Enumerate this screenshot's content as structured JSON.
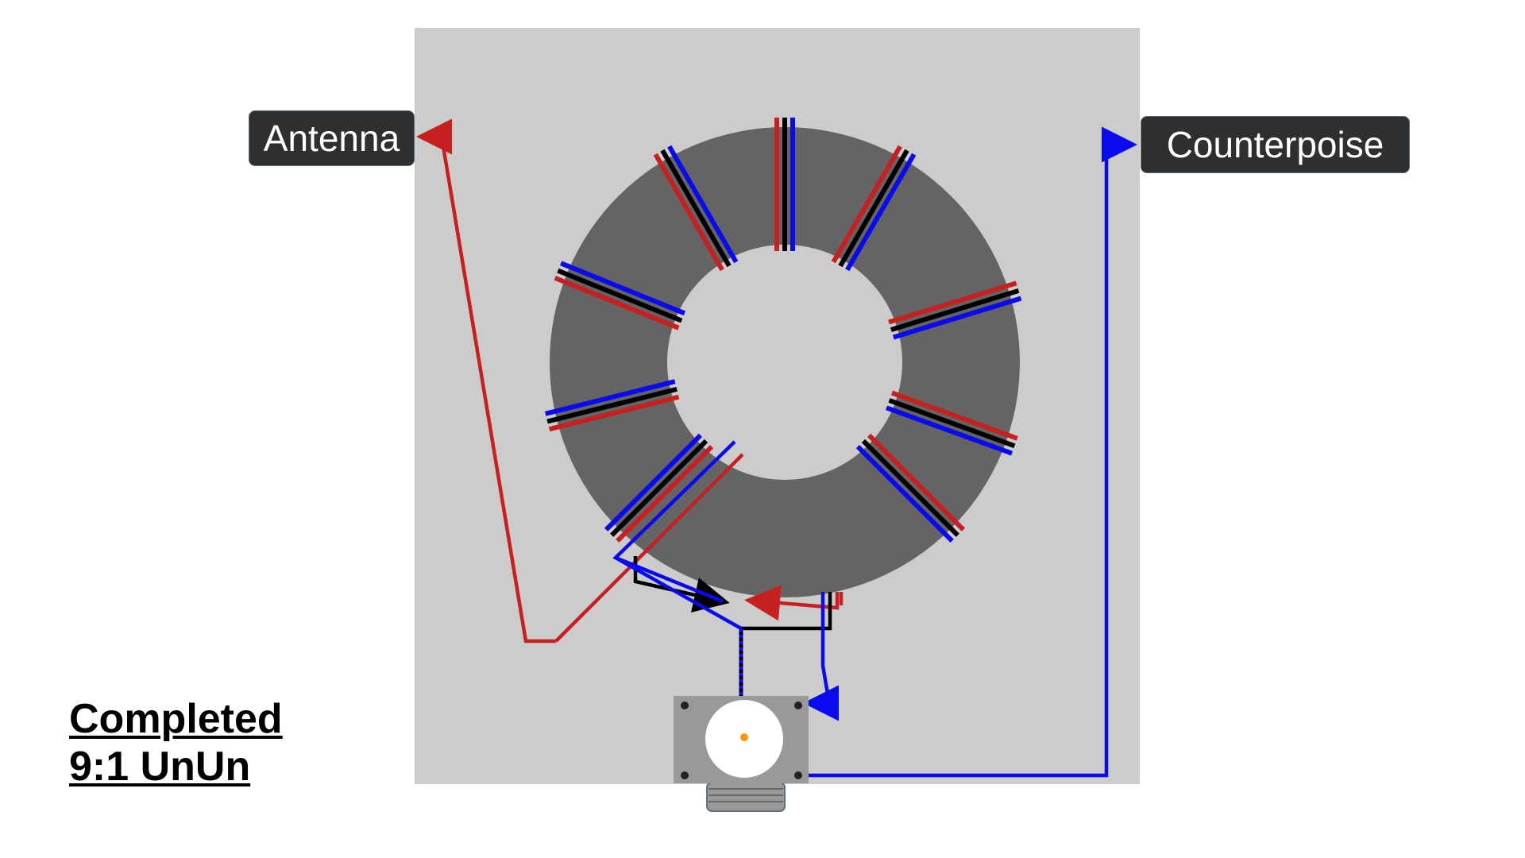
{
  "labels": {
    "antenna": "Antenna",
    "counterpoise": "Counterpoise",
    "title_line1": "Completed",
    "title_line2": "9:1 UnUn"
  },
  "colors": {
    "background": "#ffffff",
    "board": "#cccccc",
    "core": "#646464",
    "wire_red": "#c62020",
    "wire_black": "#000000",
    "wire_blue": "#0a0aee",
    "label_bg": "#2e2f31",
    "connector": "#999999",
    "connector_face": "#ffffff",
    "pin": "#ff9900"
  },
  "icons": {
    "core": "toroid-core",
    "connector": "so239-connector"
  }
}
